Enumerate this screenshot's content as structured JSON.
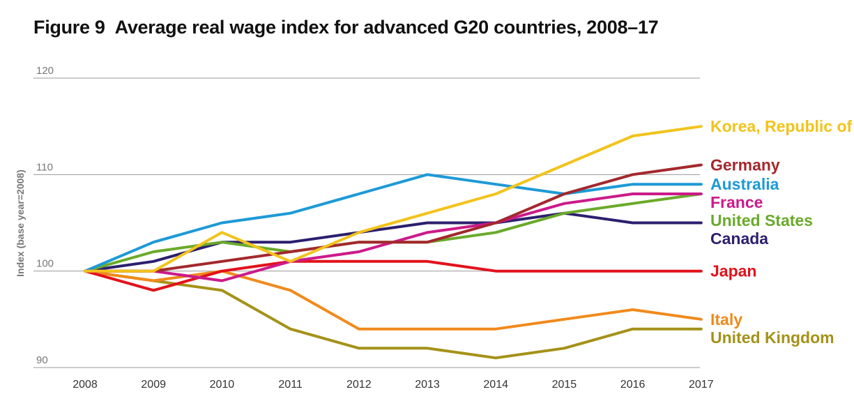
{
  "title_number": "Figure 9",
  "title_text": "Average real wage index for advanced G20 countries, 2008–17",
  "chart_data": {
    "type": "line",
    "title": "Figure 9 Average real wage index for advanced G20 countries, 2008–17",
    "xlabel": "",
    "ylabel": "Index (base year=2008)",
    "ylim": [
      90,
      120
    ],
    "yticks": [
      90,
      100,
      110,
      120
    ],
    "grid": true,
    "legend_placement": "right",
    "categories": [
      "2008",
      "2009",
      "2010",
      "2011",
      "2012",
      "2013",
      "2014",
      "2015",
      "2016",
      "2017"
    ],
    "series": [
      {
        "name": "Korea, Republic of",
        "color": "#f2c31b",
        "values": [
          100,
          100,
          104,
          101,
          104,
          106,
          108,
          111,
          114,
          115
        ]
      },
      {
        "name": "Germany",
        "color": "#a3282d",
        "values": [
          100,
          100,
          101,
          102,
          103,
          103,
          105,
          108,
          110,
          111
        ]
      },
      {
        "name": "Australia",
        "color": "#1e9ad6",
        "values": [
          100,
          103,
          105,
          106,
          108,
          110,
          109,
          108,
          109,
          109
        ]
      },
      {
        "name": "France",
        "color": "#cc1a8a",
        "values": [
          100,
          100,
          99,
          101,
          102,
          104,
          105,
          107,
          108,
          108
        ]
      },
      {
        "name": "United States",
        "color": "#6aaa2a",
        "values": [
          100,
          102,
          103,
          102,
          103,
          103,
          104,
          106,
          107,
          108
        ]
      },
      {
        "name": "Canada",
        "color": "#2b1f6e",
        "values": [
          100,
          101,
          103,
          103,
          104,
          105,
          105,
          106,
          105,
          105
        ]
      },
      {
        "name": "Japan",
        "color": "#e2121b",
        "values": [
          100,
          98,
          100,
          101,
          101,
          101,
          100,
          100,
          100,
          100
        ]
      },
      {
        "name": "Italy",
        "color": "#f08a1c",
        "values": [
          100,
          99,
          100,
          98,
          94,
          94,
          94,
          95,
          96,
          95
        ]
      },
      {
        "name": "United Kingdom",
        "color": "#a49218",
        "values": [
          100,
          99,
          98,
          94,
          92,
          92,
          91,
          92,
          94,
          94
        ]
      }
    ]
  }
}
